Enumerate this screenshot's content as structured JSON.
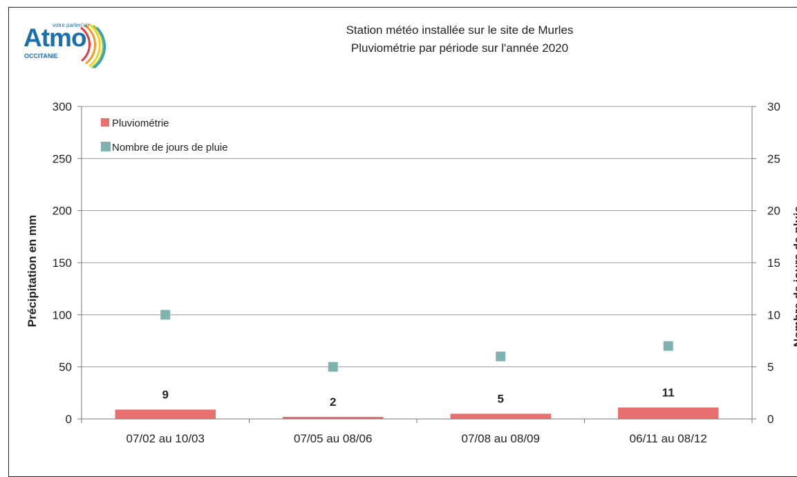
{
  "logo": {
    "name": "Atmo",
    "tagline": "votre parten'air",
    "region": "OCCITANIE"
  },
  "title_line1": "Station météo installée sur le site de Murles",
  "title_line2": "Pluviométrie par période sur l'année 2020",
  "chart_data": {
    "type": "bar",
    "categories": [
      "07/02 au 10/03",
      "07/05 au 08/06",
      "07/08 au 08/09",
      "06/11 au 08/12"
    ],
    "series": [
      {
        "name": "Pluviométrie",
        "type": "bar",
        "axis": "left",
        "color": "#e8706e",
        "values": [
          9,
          2,
          5,
          11
        ],
        "data_labels": [
          "9",
          "2",
          "5",
          "11"
        ]
      },
      {
        "name": "Nombre de jours de pluie",
        "type": "scatter",
        "axis": "right",
        "color": "#7fb2b0",
        "values": [
          10,
          5,
          6,
          7
        ]
      }
    ],
    "ylabel": "Précipitation en mm",
    "y2label": "Nombre de jours de pluie",
    "ylim": [
      0,
      300
    ],
    "y2lim": [
      0,
      30
    ],
    "yticks": [
      "0",
      "50",
      "100",
      "150",
      "200",
      "250",
      "300"
    ],
    "y2ticks": [
      "0",
      "5",
      "10",
      "15",
      "20",
      "25",
      "30"
    ],
    "grid": true,
    "legend": "top-left"
  }
}
